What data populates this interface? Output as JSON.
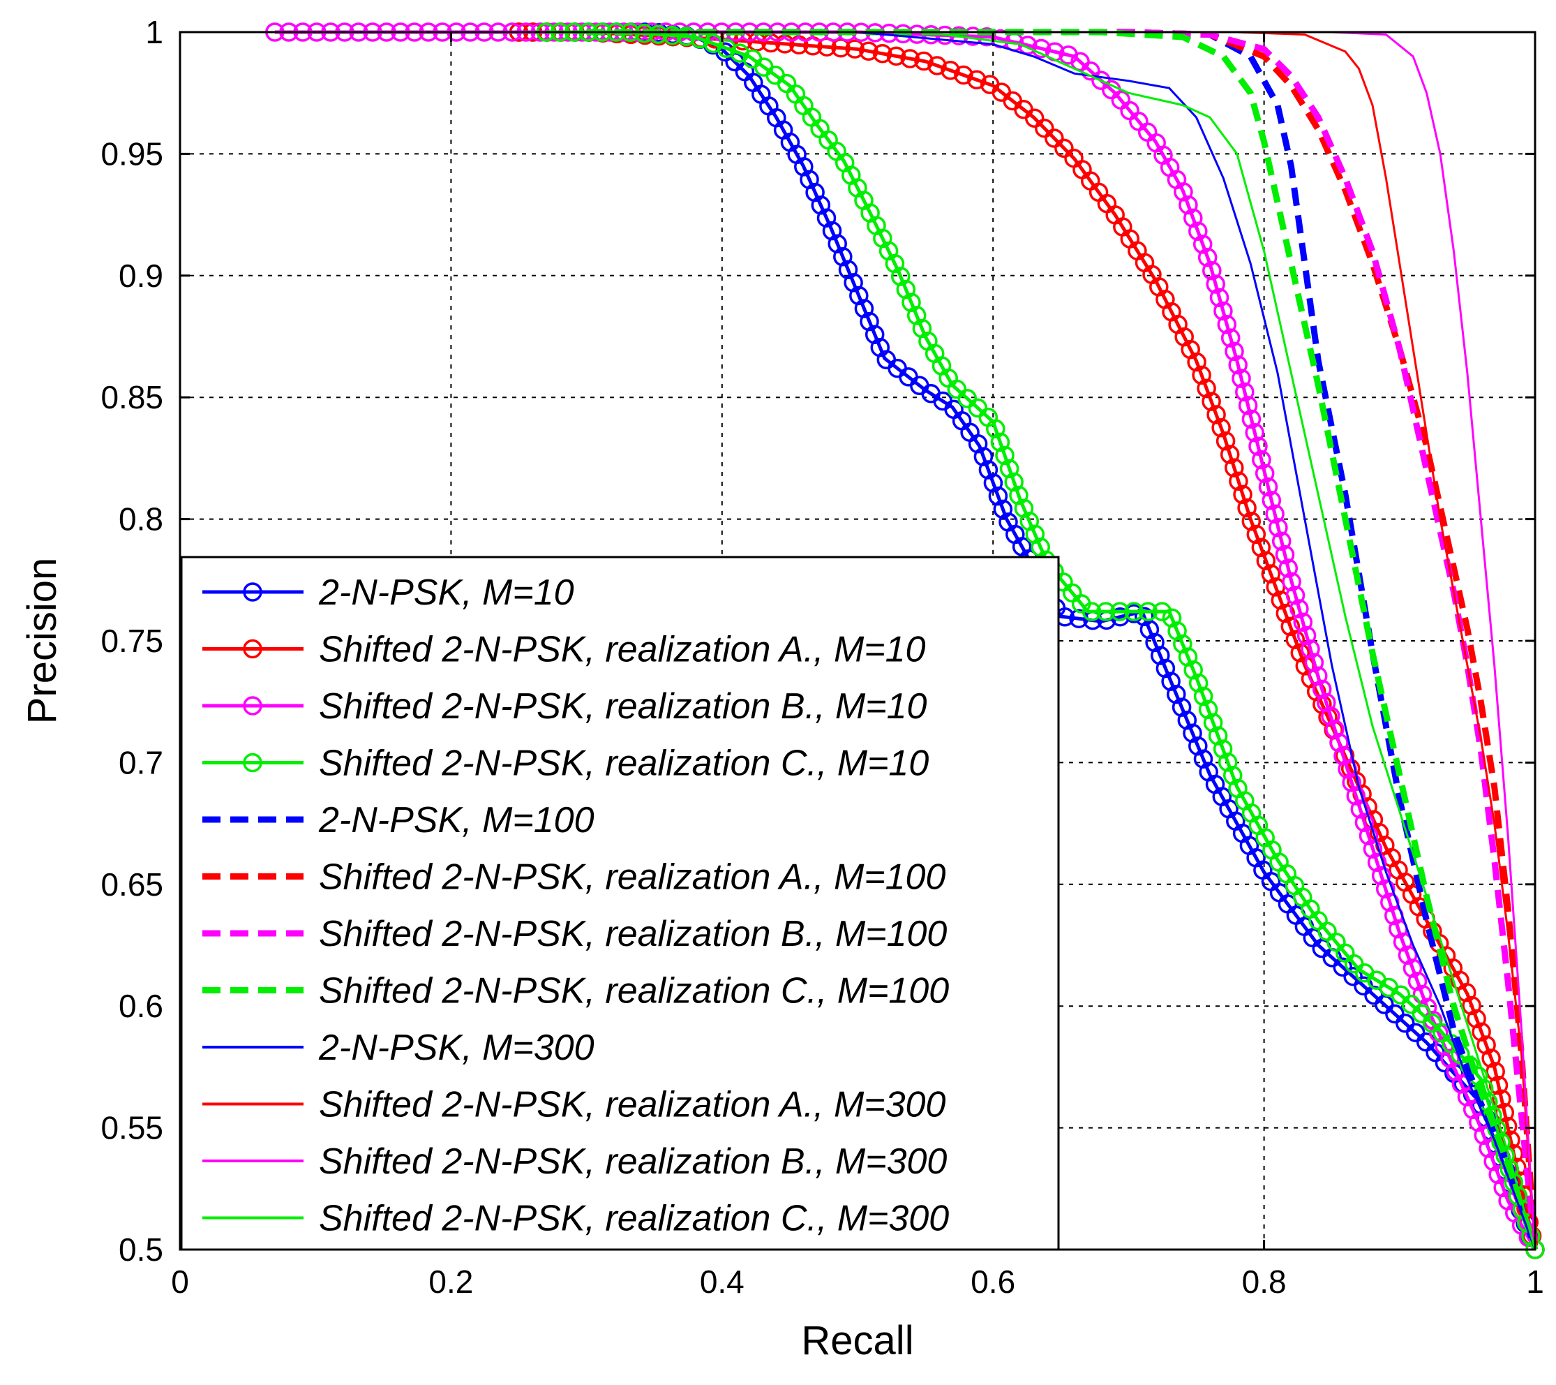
{
  "chart_data": {
    "type": "line",
    "title": "",
    "xlabel": "Recall",
    "ylabel": "Precision",
    "xlim": [
      0,
      1
    ],
    "ylim": [
      0.5,
      1
    ],
    "xticks": [
      0,
      0.2,
      0.4,
      0.6,
      0.8,
      1
    ],
    "xtick_labels": [
      "0",
      "0.2",
      "0.4",
      "0.6",
      "0.8",
      "1"
    ],
    "yticks": [
      0.5,
      0.55,
      0.6,
      0.65,
      0.7,
      0.75,
      0.8,
      0.85,
      0.9,
      0.95,
      1
    ],
    "ytick_labels": [
      "0.5",
      "0.55",
      "0.6",
      "0.65",
      "0.7",
      "0.75",
      "0.8",
      "0.85",
      "0.9",
      "0.95",
      "1"
    ],
    "grid": true,
    "legend_position": "bottom-left",
    "series": [
      {
        "name": "2-N-PSK, M=10",
        "color": "#0000ff",
        "style": "solid-marker",
        "x": [
          0.25,
          0.3,
          0.35,
          0.38,
          0.4,
          0.42,
          0.44,
          0.46,
          0.48,
          0.5,
          0.52,
          0.55,
          0.57,
          0.59,
          0.61,
          0.63,
          0.65,
          0.68,
          0.71,
          0.73,
          0.76,
          0.8,
          0.84,
          0.88,
          0.92,
          0.96,
          1.0
        ],
        "y": [
          1.0,
          1.0,
          1.0,
          0.998,
          0.993,
          0.982,
          0.965,
          0.945,
          0.92,
          0.893,
          0.866,
          0.853,
          0.846,
          0.83,
          0.8,
          0.78,
          0.76,
          0.758,
          0.762,
          0.735,
          0.695,
          0.655,
          0.625,
          0.605,
          0.585,
          0.56,
          0.5
        ]
      },
      {
        "name": "Shifted 2-N-PSK, realization A., M=10",
        "color": "#ff0000",
        "style": "solid-marker",
        "x": [
          0.25,
          0.3,
          0.4,
          0.45,
          0.5,
          0.55,
          0.6,
          0.63,
          0.66,
          0.69,
          0.72,
          0.75,
          0.77,
          0.79,
          0.81,
          0.83,
          0.85,
          0.87,
          0.89,
          0.91,
          0.93,
          0.95,
          0.97,
          1.0
        ],
        "y": [
          1.0,
          1.0,
          0.997,
          0.995,
          0.993,
          0.988,
          0.978,
          0.965,
          0.948,
          0.925,
          0.898,
          0.865,
          0.835,
          0.8,
          0.77,
          0.74,
          0.715,
          0.69,
          0.665,
          0.645,
          0.625,
          0.605,
          0.575,
          0.5
        ]
      },
      {
        "name": "Shifted 2-N-PSK, realization B., M=10",
        "color": "#ff00ff",
        "style": "solid-marker",
        "x": [
          0.07,
          0.3,
          0.5,
          0.6,
          0.66,
          0.69,
          0.72,
          0.74,
          0.76,
          0.78,
          0.8,
          0.82,
          0.84,
          0.86,
          0.88,
          0.9,
          0.92,
          0.94,
          0.96,
          0.98,
          1.0
        ],
        "y": [
          1.0,
          1.0,
          1.0,
          0.998,
          0.99,
          0.975,
          0.955,
          0.935,
          0.905,
          0.865,
          0.82,
          0.775,
          0.735,
          0.7,
          0.665,
          0.63,
          0.6,
          0.575,
          0.55,
          0.52,
          0.5
        ]
      },
      {
        "name": "Shifted 2-N-PSK, realization C., M=10",
        "color": "#00ee00",
        "style": "solid-marker",
        "x": [
          0.27,
          0.33,
          0.38,
          0.42,
          0.45,
          0.47,
          0.49,
          0.51,
          0.53,
          0.55,
          0.57,
          0.59,
          0.6,
          0.62,
          0.64,
          0.67,
          0.7,
          0.73,
          0.75,
          0.78,
          0.81,
          0.84,
          0.87,
          0.9,
          0.93,
          0.96,
          1.0
        ],
        "y": [
          1.0,
          1.0,
          0.998,
          0.99,
          0.978,
          0.962,
          0.947,
          0.925,
          0.902,
          0.875,
          0.855,
          0.845,
          0.84,
          0.808,
          0.782,
          0.762,
          0.762,
          0.762,
          0.735,
          0.69,
          0.66,
          0.635,
          0.615,
          0.605,
          0.59,
          0.57,
          0.5
        ]
      },
      {
        "name": "2-N-PSK, M=100",
        "color": "#0000ff",
        "style": "dashed",
        "x": [
          0.3,
          0.7,
          0.76,
          0.79,
          0.81,
          0.82,
          0.83,
          0.84,
          0.86,
          0.88,
          0.9,
          0.92,
          0.94,
          0.96,
          0.98,
          1.0
        ],
        "y": [
          1.0,
          1.0,
          0.999,
          0.99,
          0.97,
          0.945,
          0.905,
          0.865,
          0.81,
          0.745,
          0.685,
          0.635,
          0.59,
          0.56,
          0.535,
          0.5
        ]
      },
      {
        "name": "Shifted 2-N-PSK, realization A., M=100",
        "color": "#ff0000",
        "style": "dashed",
        "x": [
          0.3,
          0.7,
          0.76,
          0.8,
          0.82,
          0.84,
          0.86,
          0.88,
          0.9,
          0.92,
          0.93,
          0.94,
          0.95,
          0.96,
          0.97,
          0.98,
          0.99,
          1.0
        ],
        "y": [
          1.0,
          1.0,
          0.999,
          0.99,
          0.978,
          0.96,
          0.935,
          0.905,
          0.87,
          0.83,
          0.805,
          0.78,
          0.755,
          0.725,
          0.69,
          0.64,
          0.58,
          0.5
        ]
      },
      {
        "name": "Shifted 2-N-PSK, realization B., M=100",
        "color": "#ff00ff",
        "style": "dashed",
        "x": [
          0.3,
          0.7,
          0.76,
          0.8,
          0.82,
          0.84,
          0.86,
          0.88,
          0.9,
          0.92,
          0.94,
          0.95,
          0.96,
          0.97,
          0.98,
          0.99,
          1.0
        ],
        "y": [
          1.0,
          1.0,
          0.999,
          0.993,
          0.982,
          0.965,
          0.94,
          0.91,
          0.87,
          0.82,
          0.77,
          0.74,
          0.705,
          0.66,
          0.61,
          0.555,
          0.5
        ]
      },
      {
        "name": "Shifted 2-N-PSK, realization C., M=100",
        "color": "#00ee00",
        "style": "dashed",
        "x": [
          0.3,
          0.68,
          0.74,
          0.77,
          0.79,
          0.8,
          0.81,
          0.82,
          0.84,
          0.86,
          0.88,
          0.9,
          0.92,
          0.94,
          0.96,
          0.98,
          1.0
        ],
        "y": [
          1.0,
          1.0,
          0.998,
          0.99,
          0.975,
          0.955,
          0.93,
          0.905,
          0.855,
          0.8,
          0.745,
          0.695,
          0.645,
          0.6,
          0.565,
          0.535,
          0.5
        ]
      },
      {
        "name": "2-N-PSK, M=300",
        "color": "#0000ff",
        "style": "solid",
        "x": [
          0.3,
          0.5,
          0.6,
          0.63,
          0.66,
          0.7,
          0.73,
          0.75,
          0.77,
          0.79,
          0.81,
          0.83,
          0.85,
          0.87,
          0.89,
          0.91,
          0.93,
          0.95,
          0.97,
          1.0
        ],
        "y": [
          1.0,
          1.0,
          0.995,
          0.99,
          0.983,
          0.98,
          0.977,
          0.965,
          0.94,
          0.905,
          0.86,
          0.8,
          0.74,
          0.69,
          0.655,
          0.625,
          0.6,
          0.57,
          0.545,
          0.5
        ]
      },
      {
        "name": "Shifted 2-N-PSK, realization A., M=300",
        "color": "#ff0000",
        "style": "solid",
        "x": [
          0.3,
          0.78,
          0.83,
          0.86,
          0.87,
          0.88,
          0.89,
          0.9,
          0.91,
          0.92,
          0.93,
          0.94,
          0.95,
          0.96,
          0.97,
          0.98,
          0.99,
          1.0
        ],
        "y": [
          1.0,
          1.0,
          0.999,
          0.992,
          0.985,
          0.97,
          0.94,
          0.905,
          0.87,
          0.835,
          0.8,
          0.77,
          0.74,
          0.71,
          0.675,
          0.63,
          0.58,
          0.5
        ]
      },
      {
        "name": "Shifted 2-N-PSK, realization B., M=300",
        "color": "#ff00ff",
        "style": "solid",
        "x": [
          0.3,
          0.85,
          0.89,
          0.91,
          0.92,
          0.93,
          0.94,
          0.95,
          0.96,
          0.97,
          0.98,
          0.99,
          1.0
        ],
        "y": [
          1.0,
          1.0,
          0.999,
          0.99,
          0.975,
          0.95,
          0.91,
          0.86,
          0.8,
          0.74,
          0.67,
          0.59,
          0.5
        ]
      },
      {
        "name": "Shifted 2-N-PSK, realization C., M=300",
        "color": "#00ee00",
        "style": "solid",
        "x": [
          0.3,
          0.55,
          0.62,
          0.66,
          0.7,
          0.74,
          0.76,
          0.78,
          0.8,
          0.82,
          0.84,
          0.86,
          0.88,
          0.9,
          0.92,
          0.94,
          0.96,
          0.98,
          1.0
        ],
        "y": [
          1.0,
          1.0,
          0.995,
          0.985,
          0.975,
          0.97,
          0.965,
          0.95,
          0.91,
          0.86,
          0.81,
          0.76,
          0.715,
          0.68,
          0.645,
          0.61,
          0.575,
          0.54,
          0.5
        ]
      }
    ],
    "colors": {
      "axis": "#000000",
      "grid": "#000000",
      "background": "#ffffff"
    }
  }
}
